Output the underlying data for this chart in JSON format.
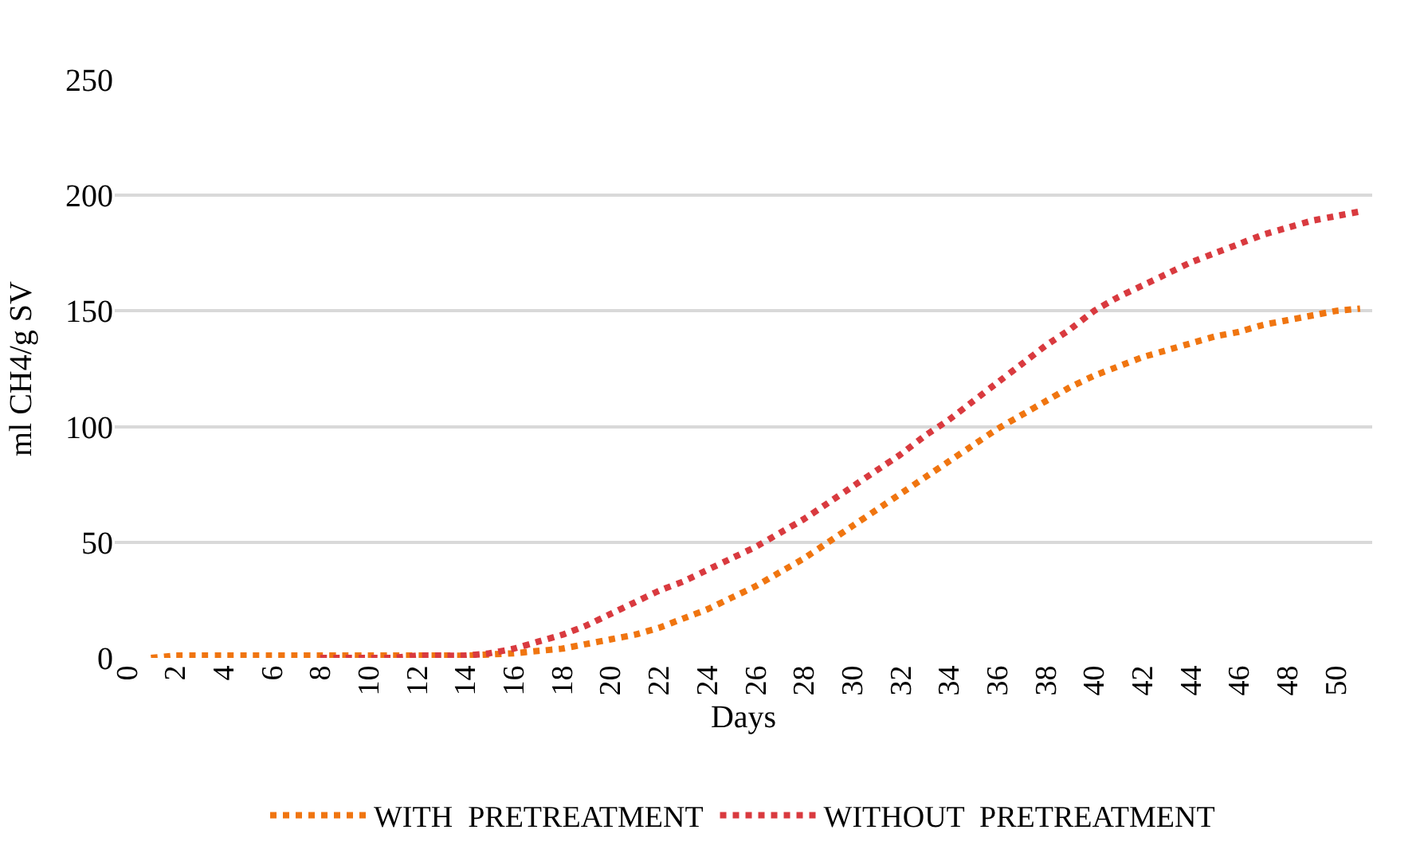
{
  "chart_data": {
    "type": "line",
    "xlabel": "Days",
    "ylabel": "ml CH4/g SV",
    "xlim": [
      -0.5,
      51.5
    ],
    "xticks": [
      0,
      2,
      4,
      6,
      8,
      10,
      12,
      14,
      16,
      18,
      20,
      22,
      24,
      26,
      28,
      30,
      32,
      34,
      36,
      38,
      40,
      42,
      44,
      46,
      48,
      50
    ],
    "ylim": [
      0,
      250
    ],
    "yticks": [
      0,
      50,
      100,
      150,
      200,
      250
    ],
    "grid": "y",
    "legend": "bottom",
    "line_style": "dotted",
    "marker": "none",
    "series": [
      {
        "name": "WITH  PRETREATMENT",
        "color": "#f07510",
        "x": [
          1,
          2,
          3,
          4,
          5,
          6,
          7,
          8,
          9,
          10,
          11,
          12,
          13,
          14,
          15,
          16,
          17,
          18,
          19,
          20,
          21,
          22,
          23,
          24,
          25,
          26,
          27,
          28,
          29,
          30,
          31,
          32,
          33,
          34,
          35,
          36,
          37,
          38,
          39,
          40,
          41,
          42,
          43,
          44,
          45,
          46,
          47,
          48,
          49,
          50,
          51
        ],
        "values": [
          0,
          1,
          1,
          1,
          1,
          1,
          1,
          1,
          1,
          1,
          1,
          1,
          1,
          1,
          1.5,
          2,
          3,
          4,
          6,
          8,
          10,
          13,
          17,
          21,
          26,
          31,
          37,
          43,
          50,
          57,
          64,
          71,
          78,
          85,
          92,
          99,
          105,
          111,
          117,
          122,
          126,
          130,
          133,
          136,
          139,
          141,
          144,
          146,
          148,
          150,
          151
        ]
      },
      {
        "name": "WITHOUT  PRETREATMENT",
        "color": "#d93a3f",
        "x": [
          8,
          9,
          10,
          11,
          12,
          13,
          14,
          15,
          16,
          17,
          18,
          19,
          20,
          21,
          22,
          23,
          24,
          25,
          26,
          27,
          28,
          29,
          30,
          31,
          32,
          33,
          34,
          35,
          36,
          37,
          38,
          39,
          40,
          41,
          42,
          43,
          44,
          45,
          46,
          47,
          48,
          49,
          50,
          51
        ],
        "values": [
          0,
          0,
          0,
          0,
          1,
          1,
          1,
          2,
          4,
          7,
          10,
          14,
          19,
          24,
          29,
          33,
          38,
          43,
          48,
          54,
          60,
          67,
          74,
          81,
          88,
          96,
          103,
          111,
          119,
          127,
          135,
          142,
          150,
          156,
          161,
          166,
          171,
          175,
          179,
          183,
          186,
          189,
          191,
          193
        ]
      }
    ]
  }
}
